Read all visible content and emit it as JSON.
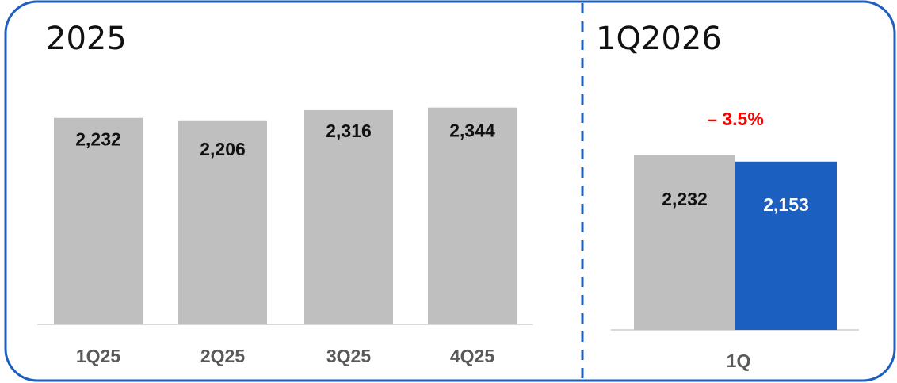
{
  "colors": {
    "frame": "#1B5FC1",
    "divider": "#1B5FC1",
    "bar_gray": "#BFBFBF",
    "bar_blue": "#1B5FC1",
    "axis": "#D9D9D9",
    "change": "#FF0000",
    "label_dark": "#111111",
    "label_light": "#FFFFFF"
  },
  "chart_data": [
    {
      "type": "bar",
      "title": "2025",
      "categories": [
        "1Q25",
        "2Q25",
        "3Q25",
        "4Q25"
      ],
      "values": [
        2232,
        2206,
        2316,
        2344
      ],
      "value_labels": [
        "2,232",
        "2,206",
        "2,316",
        "2,344"
      ],
      "ylim": [
        0,
        2650
      ],
      "grid": false,
      "legend": "none"
    },
    {
      "type": "bar",
      "title": "1Q2026",
      "categories": [
        "1Q"
      ],
      "series": [
        {
          "values": [
            2232
          ],
          "value_labels": [
            "2,232"
          ],
          "color": "#BFBFBF"
        },
        {
          "values": [
            2153
          ],
          "value_labels": [
            "2,153"
          ],
          "color": "#1B5FC1"
        }
      ],
      "change_label": "– 3.5%",
      "ylim": [
        0,
        2650
      ],
      "grid": false,
      "legend": "none"
    }
  ]
}
